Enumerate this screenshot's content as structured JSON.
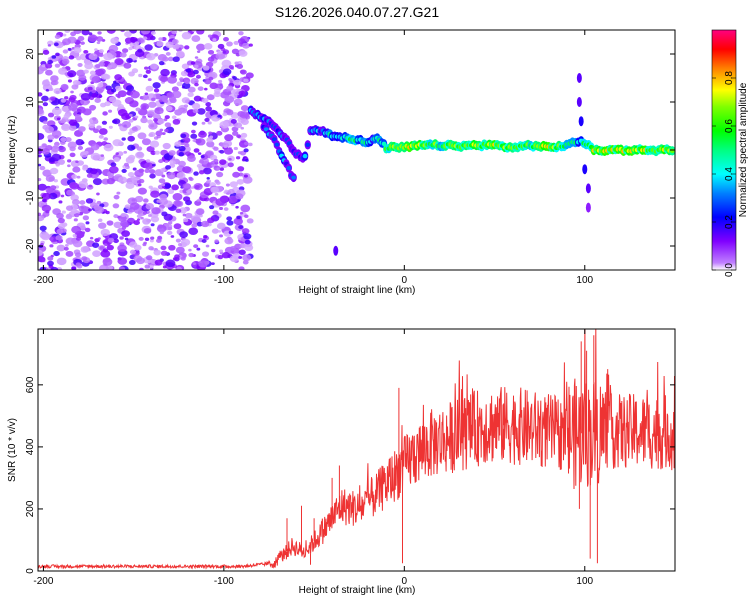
{
  "title": "S126.2026.040.07.27.G21",
  "chart_data": [
    {
      "type": "heatmap",
      "name": "spectrogram",
      "xlabel": "Height of straight line (km)",
      "ylabel": "Frequency (Hz)",
      "xlim": [
        -203,
        150
      ],
      "ylim": [
        -25,
        25
      ],
      "xticks": [
        -200,
        -100,
        0,
        100
      ],
      "xtick_labels": [
        "-200",
        "-100",
        "0",
        "100"
      ],
      "yticks": [
        -20,
        -10,
        0,
        10,
        20
      ],
      "ytick_labels": [
        "-20",
        "-10",
        "0",
        "10",
        "20"
      ],
      "colorbar": {
        "label": "Normalized spectral amplitude",
        "range": [
          0,
          1
        ],
        "ticks": [
          0.0,
          0.2,
          0.4,
          0.6,
          0.8
        ],
        "tick_labels": [
          "0.0",
          "0.2",
          "0.4",
          "0.6",
          "0.8"
        ]
      },
      "noise_region_x": [
        -203,
        -85
      ],
      "ridge": [
        {
          "x": -85,
          "y": 8,
          "a": 0.3
        },
        {
          "x": -80,
          "y": 7,
          "a": 0.3
        },
        {
          "x": -75,
          "y": 6,
          "a": 0.25
        },
        {
          "x": -70,
          "y": 4,
          "a": 0.25
        },
        {
          "x": -65,
          "y": 2,
          "a": 0.25
        },
        {
          "x": -60,
          "y": -1,
          "a": 0.25
        },
        {
          "x": -55,
          "y": -1.5,
          "a": 0.3
        },
        {
          "x": -52,
          "y": 4,
          "a": 0.3
        },
        {
          "x": -45,
          "y": 4,
          "a": 0.35
        },
        {
          "x": -40,
          "y": 3,
          "a": 0.45
        },
        {
          "x": -30,
          "y": 2.5,
          "a": 0.5
        },
        {
          "x": -20,
          "y": 1.5,
          "a": 0.45
        },
        {
          "x": -15,
          "y": 2.5,
          "a": 0.4
        },
        {
          "x": -10,
          "y": 0.5,
          "a": 0.55
        },
        {
          "x": 0,
          "y": 0.5,
          "a": 0.75
        },
        {
          "x": 10,
          "y": 1,
          "a": 0.65
        },
        {
          "x": 20,
          "y": 1,
          "a": 0.6
        },
        {
          "x": 30,
          "y": 0.8,
          "a": 0.65
        },
        {
          "x": 40,
          "y": 1,
          "a": 0.65
        },
        {
          "x": 50,
          "y": 1,
          "a": 0.7
        },
        {
          "x": 60,
          "y": 0.5,
          "a": 0.6
        },
        {
          "x": 70,
          "y": 1,
          "a": 0.6
        },
        {
          "x": 80,
          "y": 0.5,
          "a": 0.7
        },
        {
          "x": 90,
          "y": 1,
          "a": 0.55
        },
        {
          "x": 98,
          "y": 2,
          "a": 0.45
        },
        {
          "x": 105,
          "y": 0,
          "a": 0.7
        },
        {
          "x": 120,
          "y": 0,
          "a": 0.7
        },
        {
          "x": 135,
          "y": 0,
          "a": 0.7
        },
        {
          "x": 150,
          "y": 0,
          "a": 0.7
        }
      ],
      "branch": [
        {
          "x": -78,
          "y": 5,
          "a": 0.3
        },
        {
          "x": -72,
          "y": 2,
          "a": 0.3
        },
        {
          "x": -68,
          "y": -1,
          "a": 0.3
        },
        {
          "x": -64,
          "y": -4,
          "a": 0.25
        },
        {
          "x": -60,
          "y": -7,
          "a": 0.25
        }
      ],
      "spikes": [
        {
          "x": 97,
          "y": 15,
          "a": 0.15
        },
        {
          "x": 97,
          "y": 10,
          "a": 0.15
        },
        {
          "x": 98,
          "y": 6,
          "a": 0.2
        },
        {
          "x": 100,
          "y": -4,
          "a": 0.2
        },
        {
          "x": 102,
          "y": -8,
          "a": 0.15
        },
        {
          "x": 102,
          "y": -12,
          "a": 0.1
        },
        {
          "x": -38,
          "y": -21,
          "a": 0.15
        }
      ]
    },
    {
      "type": "line",
      "name": "snr",
      "xlabel": "Height of straight line (km)",
      "ylabel": "SNR (10 * v/v)",
      "xlim": [
        -203,
        150
      ],
      "ylim": [
        0,
        780
      ],
      "xticks": [
        -200,
        -100,
        0,
        100
      ],
      "xtick_labels": [
        "-200",
        "-100",
        "0",
        "100"
      ],
      "yticks": [
        0,
        200,
        400,
        600
      ],
      "ytick_labels": [
        "0",
        "200",
        "400",
        "600"
      ],
      "color": "#ee3333",
      "envelope": [
        {
          "x": -203,
          "y": 15
        },
        {
          "x": -150,
          "y": 15
        },
        {
          "x": -90,
          "y": 15
        },
        {
          "x": -72,
          "y": 25
        },
        {
          "x": -62,
          "y": 80
        },
        {
          "x": -55,
          "y": 60
        },
        {
          "x": -45,
          "y": 130
        },
        {
          "x": -35,
          "y": 210
        },
        {
          "x": -25,
          "y": 200
        },
        {
          "x": -15,
          "y": 250
        },
        {
          "x": -5,
          "y": 310
        },
        {
          "x": 5,
          "y": 370
        },
        {
          "x": 15,
          "y": 410
        },
        {
          "x": 30,
          "y": 440
        },
        {
          "x": 45,
          "y": 470
        },
        {
          "x": 60,
          "y": 470
        },
        {
          "x": 75,
          "y": 455
        },
        {
          "x": 90,
          "y": 440
        },
        {
          "x": 110,
          "y": 450
        },
        {
          "x": 130,
          "y": 450
        },
        {
          "x": 150,
          "y": 445
        }
      ],
      "peaks": [
        {
          "x": -65,
          "y": 170
        },
        {
          "x": -57,
          "y": 210
        },
        {
          "x": -50,
          "y": 170
        },
        {
          "x": -40,
          "y": 300
        },
        {
          "x": -36,
          "y": 340
        },
        {
          "x": -18,
          "y": 290
        },
        {
          "x": -3,
          "y": 590
        },
        {
          "x": 55,
          "y": 540
        },
        {
          "x": 98,
          "y": 740
        },
        {
          "x": 101,
          "y": 710
        },
        {
          "x": 105,
          "y": 760
        }
      ],
      "dips": [
        {
          "x": -52,
          "y": 20
        },
        {
          "x": -1,
          "y": 25
        },
        {
          "x": 97,
          "y": 200
        },
        {
          "x": 103,
          "y": 40
        },
        {
          "x": 107,
          "y": 25
        }
      ]
    }
  ]
}
